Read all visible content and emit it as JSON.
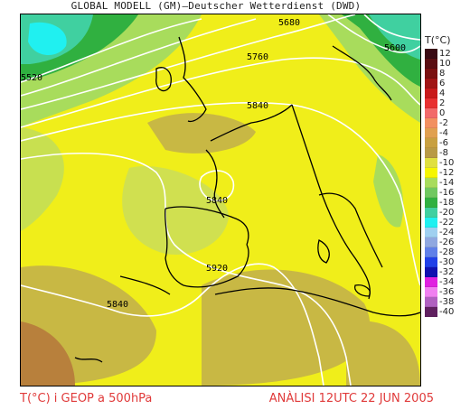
{
  "title": "GLOBAL MODELL (GM)—Deutscher Wetterdienst (DWD)",
  "legend": {
    "title": "T(°C)",
    "levels": [
      {
        "label": "12",
        "color": "#3a0a14"
      },
      {
        "label": "10",
        "color": "#5a0e12"
      },
      {
        "label": "8",
        "color": "#7a1010"
      },
      {
        "label": "6",
        "color": "#a01414"
      },
      {
        "label": "4",
        "color": "#c81a1a"
      },
      {
        "label": "2",
        "color": "#e83030"
      },
      {
        "label": "0",
        "color": "#f26a6a"
      },
      {
        "label": "-2",
        "color": "#f29060"
      },
      {
        "label": "-4",
        "color": "#e0a050"
      },
      {
        "label": "-6",
        "color": "#c8a040"
      },
      {
        "label": "-8",
        "color": "#b89a46"
      },
      {
        "label": "-10",
        "color": "#e0e040"
      },
      {
        "label": "-12",
        "color": "#f6f600"
      },
      {
        "label": "-14",
        "color": "#a8dc5c"
      },
      {
        "label": "-16",
        "color": "#70c860"
      },
      {
        "label": "-18",
        "color": "#30b040"
      },
      {
        "label": "-20",
        "color": "#40d0a0"
      },
      {
        "label": "-22",
        "color": "#20f0f0"
      },
      {
        "label": "-24",
        "color": "#a0d0f0"
      },
      {
        "label": "-26",
        "color": "#90a8e0"
      },
      {
        "label": "-28",
        "color": "#6080e8"
      },
      {
        "label": "-30",
        "color": "#2040e8"
      },
      {
        "label": "-32",
        "color": "#1010b0"
      },
      {
        "label": "-34",
        "color": "#e020e0"
      },
      {
        "label": "-36",
        "color": "#f080f0"
      },
      {
        "label": "-38",
        "color": "#b060c0"
      },
      {
        "label": "-40",
        "color": "#602060"
      }
    ]
  },
  "contour_labels": {
    "c5680": "5680",
    "c5600": "5600",
    "c5520": "5520",
    "c5760": "5760",
    "c5840_north": "5840",
    "c5840_center": "5840",
    "c5920": "5920",
    "c5840_west": "5840"
  },
  "footer": {
    "variable": "T(°C) i GEOP a 500hPa",
    "analysis": "ANÀLISI 12UTC 22 JUN 2005"
  }
}
